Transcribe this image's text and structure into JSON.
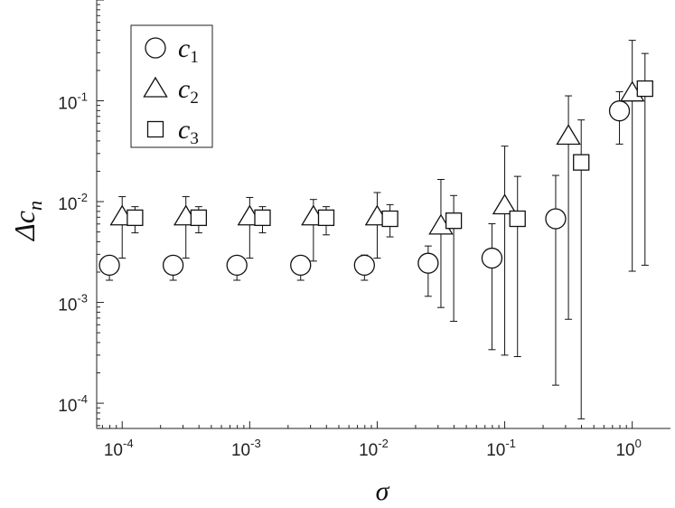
{
  "chart_data": {
    "type": "scatter",
    "title": "",
    "xlabel": "σ",
    "ylabel_symbol": "Δc",
    "ylabel_sub": "n",
    "x_scale": "log",
    "y_scale": "log",
    "xlim": [
      6.31e-05,
      1.995
    ],
    "ylim": [
      5.62e-05,
      1.0
    ],
    "grid": false,
    "legend_position": "top-left",
    "x_ticks": [
      {
        "base": "10",
        "exp": "-4",
        "value": 0.0001
      },
      {
        "base": "10",
        "exp": "-3",
        "value": 0.001
      },
      {
        "base": "10",
        "exp": "-2",
        "value": 0.01
      },
      {
        "base": "10",
        "exp": "-1",
        "value": 0.1
      },
      {
        "base": "10",
        "exp": "0",
        "value": 1
      }
    ],
    "y_ticks": [
      {
        "base": "10",
        "exp": "-4",
        "value": 0.0001
      },
      {
        "base": "10",
        "exp": "-3",
        "value": 0.001
      },
      {
        "base": "10",
        "exp": "-2",
        "value": 0.01
      },
      {
        "base": "10",
        "exp": "-1",
        "value": 0.1
      }
    ],
    "series": [
      {
        "name_symbol": "c",
        "name_sub": "1",
        "marker": "circle",
        "points": [
          {
            "x": 7.94e-05,
            "y": 0.00234,
            "lo": 0.00166,
            "hi": 0.00275
          },
          {
            "x": 0.000251,
            "y": 0.00234,
            "lo": 0.00166,
            "hi": 0.00282
          },
          {
            "x": 0.000794,
            "y": 0.00234,
            "lo": 0.00166,
            "hi": 0.00282
          },
          {
            "x": 0.00251,
            "y": 0.00234,
            "lo": 0.00166,
            "hi": 0.00282
          },
          {
            "x": 0.00794,
            "y": 0.00234,
            "lo": 0.00166,
            "hi": 0.00295
          },
          {
            "x": 0.0251,
            "y": 0.00245,
            "lo": 0.00115,
            "hi": 0.00363
          },
          {
            "x": 0.0794,
            "y": 0.00275,
            "lo": 0.00034,
            "hi": 0.00603
          },
          {
            "x": 0.251,
            "y": 0.00676,
            "lo": 0.000151,
            "hi": 0.0182
          },
          {
            "x": 0.794,
            "y": 0.0794,
            "lo": 0.0372,
            "hi": 0.123
          }
        ]
      },
      {
        "name_symbol": "c",
        "name_sub": "2",
        "marker": "triangle",
        "points": [
          {
            "x": 0.0001,
            "y": 0.00708,
            "lo": 0.00275,
            "hi": 0.0112
          },
          {
            "x": 0.000316,
            "y": 0.00708,
            "lo": 0.00275,
            "hi": 0.0112
          },
          {
            "x": 0.001,
            "y": 0.00708,
            "lo": 0.00275,
            "hi": 0.011
          },
          {
            "x": 0.00316,
            "y": 0.00708,
            "lo": 0.00257,
            "hi": 0.0105
          },
          {
            "x": 0.01,
            "y": 0.00708,
            "lo": 0.00275,
            "hi": 0.0123
          },
          {
            "x": 0.0316,
            "y": 0.00575,
            "lo": 0.00089,
            "hi": 0.0166
          },
          {
            "x": 0.1,
            "y": 0.00912,
            "lo": 0.0003,
            "hi": 0.0355
          },
          {
            "x": 0.316,
            "y": 0.0447,
            "lo": 0.00068,
            "hi": 0.112
          },
          {
            "x": 1.0,
            "y": 0.12,
            "lo": 0.00204,
            "hi": 0.398
          }
        ]
      },
      {
        "name_symbol": "c",
        "name_sub": "3",
        "marker": "square",
        "points": [
          {
            "x": 0.000126,
            "y": 0.00692,
            "lo": 0.0049,
            "hi": 0.00891
          },
          {
            "x": 0.000398,
            "y": 0.00692,
            "lo": 0.0049,
            "hi": 0.00891
          },
          {
            "x": 0.00126,
            "y": 0.00692,
            "lo": 0.0049,
            "hi": 0.00891
          },
          {
            "x": 0.00398,
            "y": 0.00692,
            "lo": 0.00468,
            "hi": 0.00891
          },
          {
            "x": 0.0126,
            "y": 0.00676,
            "lo": 0.00447,
            "hi": 0.00933
          },
          {
            "x": 0.0398,
            "y": 0.00646,
            "lo": 0.00065,
            "hi": 0.0115
          },
          {
            "x": 0.126,
            "y": 0.00676,
            "lo": 0.00029,
            "hi": 0.0178
          },
          {
            "x": 0.398,
            "y": 0.0245,
            "lo": 7e-05,
            "hi": 0.0646
          },
          {
            "x": 1.259,
            "y": 0.132,
            "lo": 0.00234,
            "hi": 0.295
          }
        ]
      }
    ]
  }
}
